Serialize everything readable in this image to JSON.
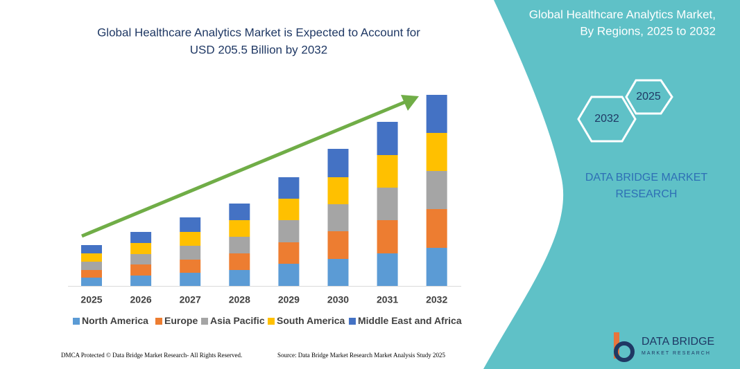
{
  "chart_data": {
    "type": "bar",
    "stacked": true,
    "title": [
      "Global Healthcare Analytics Market is Expected to Account for",
      "USD 205.5 Billion by 2032"
    ],
    "categories": [
      "2025",
      "2026",
      "2027",
      "2028",
      "2029",
      "2030",
      "2031",
      "2032"
    ],
    "series": [
      {
        "name": "North America",
        "color": "#5b9bd5",
        "values": [
          12,
          15,
          19,
          23,
          32,
          39,
          47,
          55
        ]
      },
      {
        "name": "Europe",
        "color": "#ed7d31",
        "values": [
          11,
          16,
          19,
          24,
          31,
          40,
          48,
          56
        ]
      },
      {
        "name": "Asia Pacific",
        "color": "#a5a5a5",
        "values": [
          12,
          15,
          20,
          24,
          32,
          39,
          47,
          55
        ]
      },
      {
        "name": "South America",
        "color": "#ffc000",
        "values": [
          12,
          16,
          20,
          24,
          31,
          39,
          47,
          55
        ]
      },
      {
        "name": "Middle East and Africa",
        "color": "#4472c4",
        "values": [
          12,
          16,
          21,
          24,
          31,
          41,
          48,
          55
        ]
      }
    ],
    "legend": "bottom"
  },
  "sidebar": {
    "title": [
      "Global Healthcare Analytics Market,",
      "By Regions, 2025 to 2032"
    ],
    "hex_start": "2025",
    "hex_end": "2032",
    "brand": [
      "DATA BRIDGE MARKET",
      "RESEARCH"
    ],
    "logo": "DATA BRIDGE",
    "logo_sub": "MARKET RESEARCH"
  },
  "footer": {
    "left": "DMCA Protected © Data Bridge Market Research- All Rights Reserved.",
    "right": "Source: Data Bridge Market Research Market Analysis Study 2025"
  }
}
